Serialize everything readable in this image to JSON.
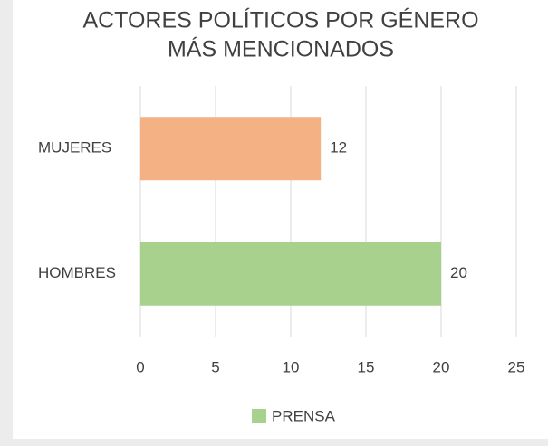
{
  "chart_data": {
    "type": "hbar",
    "title": [
      "ACTORES POLÍTICOS POR GÉNERO",
      "MÁS MENCIONADOS"
    ],
    "categories": [
      "MUJERES",
      "HOMBRES"
    ],
    "series": [
      {
        "name": "PRENSA",
        "color": "#a9d18e",
        "values": [
          12,
          20
        ]
      }
    ],
    "bar_colors": [
      "#f4b183",
      "#a9d18e"
    ],
    "xlim": [
      0,
      25
    ],
    "xticks": [
      0,
      5,
      10,
      15,
      20,
      25
    ],
    "grid": true,
    "legend": "bottom"
  }
}
